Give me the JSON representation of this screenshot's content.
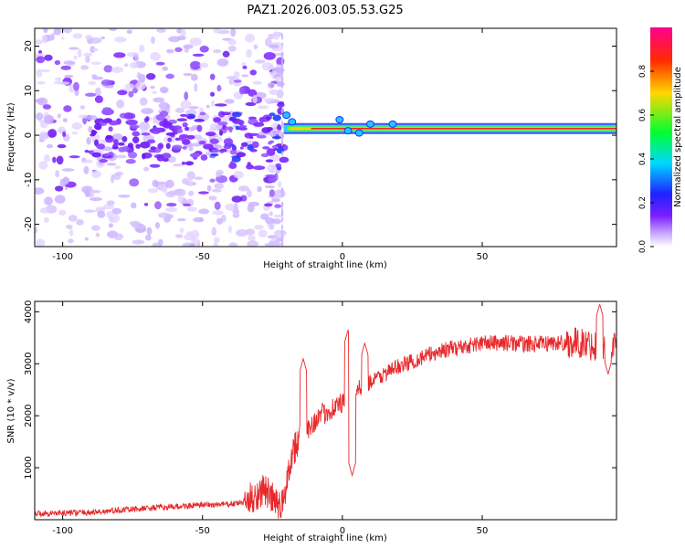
{
  "title": "PAZ1.2026.003.05.53.G25",
  "colors": {
    "snr_line": "#e8282a",
    "axis": "#000000",
    "background": "#ffffff",
    "track_outer": "#30c8ff",
    "track_core": "#ff2020"
  },
  "chart_data": [
    {
      "type": "heatmap",
      "xlabel": "Height of straight line (km)",
      "ylabel": "Frequency (Hz)",
      "xlim": [
        -110,
        98
      ],
      "ylim": [
        -25,
        24
      ],
      "xticks": [
        -100,
        -50,
        0,
        50
      ],
      "yticks": [
        -20,
        -10,
        0,
        10,
        20
      ],
      "colorbar": {
        "label": "Normalized spectral amplitude",
        "range": [
          0,
          1
        ],
        "ticks": [
          "0.0",
          "0.2",
          "0.4",
          "0.6",
          "0.8"
        ],
        "tick_values": [
          0.0,
          0.2,
          0.4,
          0.6,
          0.8
        ],
        "colormap": [
          "#ffffff",
          "#c8a8ff",
          "#7a1fff",
          "#1e22ff",
          "#00d8ff",
          "#00ff30",
          "#ffd700",
          "#ff2a00",
          "#ff0090"
        ]
      },
      "track": {
        "start_km": -21,
        "end_km": 98,
        "frequency_hz": 1.5,
        "note": "dominant narrow band near 1.5 Hz for heights above about -20 km; scattered weak noise below"
      }
    },
    {
      "type": "line",
      "xlabel": "Height of straight line (km)",
      "ylabel": "SNR (10 * v/v)",
      "xlim": [
        -110,
        98
      ],
      "ylim": [
        0,
        4200
      ],
      "xticks": [
        -100,
        -50,
        0,
        50
      ],
      "yticks": [
        1000,
        2000,
        3000,
        4000
      ],
      "series": [
        {
          "name": "SNR",
          "x": [
            -110,
            -100,
            -90,
            -80,
            -70,
            -60,
            -50,
            -40,
            -35,
            -30,
            -28,
            -25,
            -22,
            -20,
            -18,
            -15,
            -10,
            -5,
            0,
            5,
            10,
            15,
            20,
            25,
            30,
            35,
            40,
            45,
            50,
            55,
            60,
            65,
            70,
            75,
            80,
            85,
            90,
            95,
            98
          ],
          "y": [
            120,
            130,
            140,
            180,
            220,
            250,
            280,
            300,
            330,
            500,
            600,
            400,
            200,
            700,
            1300,
            1600,
            1900,
            2100,
            2250,
            2500,
            2650,
            2800,
            2950,
            3050,
            3150,
            3250,
            3300,
            3350,
            3400,
            3400,
            3400,
            3380,
            3380,
            3400,
            3400,
            3400,
            3350,
            3350,
            3350
          ],
          "spikes": [
            {
              "x": -14,
              "y": 3100
            },
            {
              "x": 2,
              "y": 3650
            },
            {
              "x": 3.5,
              "y": 850
            },
            {
              "x": 8,
              "y": 3400
            },
            {
              "x": 92,
              "y": 4150
            },
            {
              "x": 95,
              "y": 2800
            }
          ]
        }
      ]
    }
  ]
}
